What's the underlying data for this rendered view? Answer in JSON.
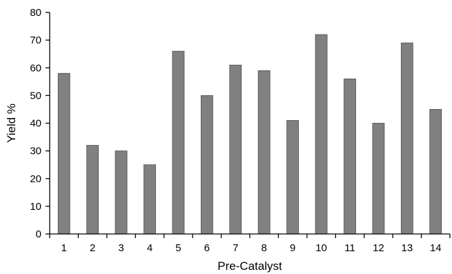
{
  "chart_data": {
    "type": "bar",
    "title": "",
    "xlabel": "Pre-Catalyst",
    "ylabel": "Yield %",
    "categories": [
      "1",
      "2",
      "3",
      "4",
      "5",
      "6",
      "7",
      "8",
      "9",
      "10",
      "11",
      "12",
      "13",
      "14"
    ],
    "values": [
      58,
      32,
      30,
      25,
      66,
      50,
      61,
      59,
      41,
      72,
      56,
      40,
      69,
      45
    ],
    "ylim": [
      0,
      80
    ],
    "yticks": [
      "0",
      "10",
      "20",
      "30",
      "40",
      "50",
      "60",
      "70",
      "80"
    ],
    "grid": false,
    "legend": "none",
    "bar_color": "#808080",
    "bar_edge_color": "#4d4d4d"
  }
}
